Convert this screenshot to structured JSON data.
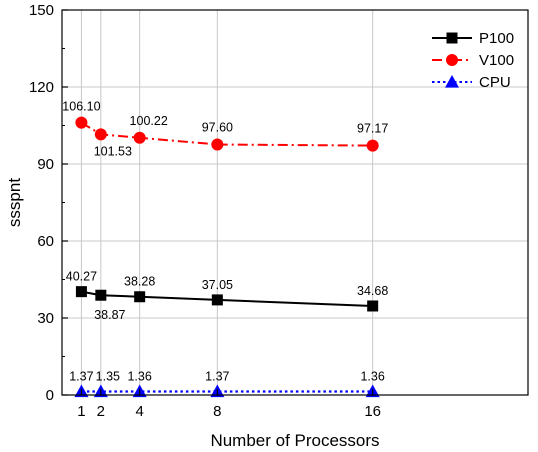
{
  "chart_data": {
    "type": "line",
    "title": "",
    "xlabel": "Number of Processors",
    "ylabel": "ssspnt",
    "xlim": [
      0,
      24
    ],
    "ylim": [
      0,
      150
    ],
    "xticks": [
      1,
      2,
      4,
      8,
      16
    ],
    "yticks": [
      0,
      30,
      60,
      90,
      120,
      150
    ],
    "grid": true,
    "legend_position": "top-right",
    "series": [
      {
        "name": "P100",
        "x": [
          1,
          2,
          4,
          8,
          16
        ],
        "values": [
          40.27,
          38.87,
          38.28,
          37.05,
          34.68
        ],
        "labels": [
          "40.27",
          "38.87",
          "38.28",
          "37.05",
          "34.68"
        ],
        "color": "#000000",
        "marker": "square",
        "line_style": "solid"
      },
      {
        "name": "V100",
        "x": [
          1,
          2,
          4,
          8,
          16
        ],
        "values": [
          106.1,
          101.53,
          100.22,
          97.6,
          97.17
        ],
        "labels": [
          "106.10",
          "101.53",
          "100.22",
          "97.60",
          "97.17"
        ],
        "color": "#ff0000",
        "marker": "circle",
        "line_style": "dash-dot"
      },
      {
        "name": "CPU",
        "x": [
          1,
          2,
          4,
          8,
          16
        ],
        "values": [
          1.37,
          1.35,
          1.36,
          1.37,
          1.36
        ],
        "labels": [
          "1.37",
          "1.35",
          "1.36",
          "1.37",
          "1.36"
        ],
        "color": "#0000ff",
        "marker": "triangle",
        "line_style": "dotted"
      }
    ]
  }
}
